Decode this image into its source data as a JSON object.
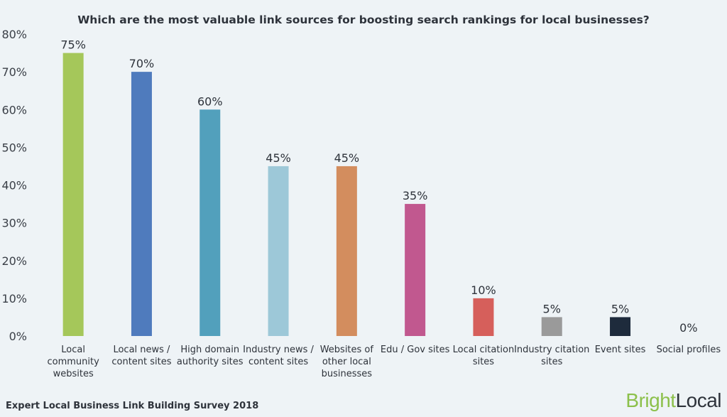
{
  "chart_data": {
    "type": "bar",
    "title": "Which are the most valuable link sources for boosting search rankings for local businesses?",
    "categories": [
      "Local community websites",
      "Local news / content sites",
      "High domain authority sites",
      "Industry news / content sites",
      "Websites of other local businesses",
      "Edu / Gov sites",
      "Local citation sites",
      "Industry citation sites",
      "Event sites",
      "Social profiles"
    ],
    "category_lines": [
      [
        "Local",
        "community",
        "websites"
      ],
      [
        "Local news /",
        "content sites"
      ],
      [
        "High domain",
        "authority sites"
      ],
      [
        "Industry news /",
        "content sites"
      ],
      [
        "Websites of",
        "other local",
        "businesses"
      ],
      [
        "Edu / Gov sites"
      ],
      [
        "Local citation",
        "sites"
      ],
      [
        "Industry citation",
        "sites"
      ],
      [
        "Event sites"
      ],
      [
        "Social profiles"
      ]
    ],
    "values": [
      75,
      70,
      60,
      45,
      45,
      35,
      10,
      5,
      5,
      0
    ],
    "data_labels": [
      "75%",
      "70%",
      "60%",
      "45%",
      "45%",
      "35%",
      "10%",
      "5%",
      "5%",
      "0%"
    ],
    "colors": [
      "#a5c75a",
      "#4f7bbd",
      "#52a0bc",
      "#9dc8d8",
      "#d38d5e",
      "#c1588f",
      "#d65f5b",
      "#9a9a9a",
      "#1e2b3c",
      "#cccccc"
    ],
    "ylim": [
      0,
      80
    ],
    "yticks": [
      0,
      10,
      20,
      30,
      40,
      50,
      60,
      70,
      80
    ],
    "ytick_labels": [
      "0%",
      "10%",
      "20%",
      "30%",
      "40%",
      "50%",
      "60%",
      "70%",
      "80%"
    ],
    "xlabel": "",
    "ylabel": "",
    "grid": false,
    "legend": "none"
  },
  "footer": {
    "source": "Expert Local Business Link Building Survey 2018",
    "logo_part1": "Bright",
    "logo_part2": "Local"
  }
}
